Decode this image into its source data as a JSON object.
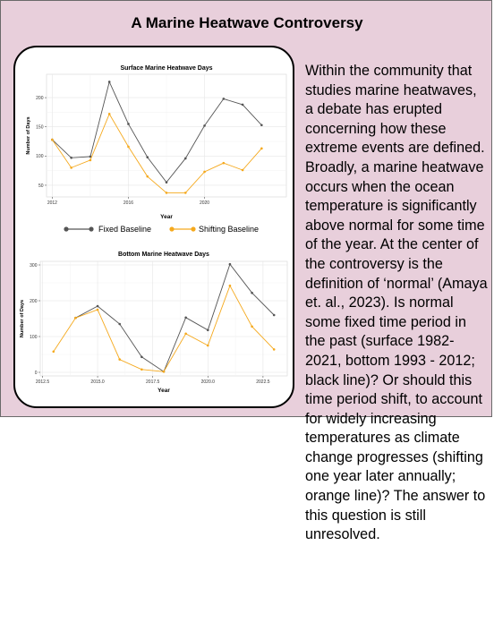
{
  "page": {
    "title": "A Marine Heatwave Controversy",
    "body_text": "Within the community that studies marine heatwaves, a debate has erupted concerning how these extreme events are defined. Broadly, a marine heatwave occurs when the ocean temperature is significantly above normal for some time of the year.  At the center of the controversy is the definition of ‘normal’ (Amaya et. al., 2023). Is normal some fixed time period in the past (surface 1982-2021, bottom 1993 - 2012; black line)?  Or should this time period shift, to account for widely increasing temperatures as climate change progresses (shifting one year later annually; orange line)?  The answer to this question is still unresolved."
  },
  "colors": {
    "panel_background": "#e8cfdb",
    "fixed_series": "#555555",
    "shifting_series": "#f5a91d"
  },
  "legend": {
    "fixed_label": "Fixed Baseline",
    "shifting_label": "Shifting Baseline",
    "placement": "between-charts"
  },
  "chart_data": [
    {
      "type": "line",
      "title": "Surface Marine Heatwave Days",
      "xlabel": "Year",
      "ylabel": "Number of Days",
      "xlim": [
        2011.7,
        2024.3
      ],
      "ylim": [
        30,
        240
      ],
      "xticks": [
        2012,
        2016,
        2020
      ],
      "xtick_labels": [
        "2012",
        "2016",
        "2020"
      ],
      "yticks": [
        50,
        100,
        150,
        200
      ],
      "ytick_labels": [
        "50",
        "100",
        "150",
        "200"
      ],
      "grid": true,
      "series": [
        {
          "name": "Fixed Baseline",
          "x": [
            2012,
            2013,
            2014,
            2015,
            2016,
            2017,
            2018,
            2019,
            2020,
            2021,
            2022,
            2023
          ],
          "y": [
            128,
            97,
            99,
            227,
            155,
            98,
            55,
            96,
            152,
            198,
            188,
            153
          ]
        },
        {
          "name": "Shifting Baseline",
          "x": [
            2012,
            2013,
            2014,
            2015,
            2016,
            2017,
            2018,
            2019,
            2020,
            2021,
            2022,
            2023
          ],
          "y": [
            128,
            80,
            93,
            172,
            116,
            65,
            37,
            37,
            73,
            88,
            76,
            113
          ]
        }
      ]
    },
    {
      "type": "line",
      "title": "Bottom Marine Heatwave Days",
      "xlabel": "Year",
      "ylabel": "Number of Days",
      "xlim": [
        2012.4,
        2023.6
      ],
      "ylim": [
        -10,
        310
      ],
      "xticks": [
        2012.5,
        2015.0,
        2017.5,
        2020.0,
        2022.5
      ],
      "xtick_labels": [
        "2012.5",
        "2015.0",
        "2017.5",
        "2020.0",
        "2022.5"
      ],
      "yticks": [
        0,
        100,
        200,
        300
      ],
      "ytick_labels": [
        "0",
        "100",
        "200",
        "300"
      ],
      "grid": true,
      "series": [
        {
          "name": "Fixed Baseline",
          "x": [
            2014,
            2015,
            2016,
            2017,
            2018,
            2019,
            2020,
            2021,
            2022,
            2023
          ],
          "y": [
            152,
            185,
            135,
            43,
            2,
            153,
            118,
            302,
            222,
            160
          ]
        },
        {
          "name": "Shifting Baseline",
          "x": [
            2013,
            2014,
            2015,
            2016,
            2017,
            2018,
            2019,
            2020,
            2021,
            2022,
            2023
          ],
          "y": [
            58,
            152,
            175,
            36,
            8,
            2,
            108,
            75,
            242,
            128,
            64
          ]
        }
      ]
    }
  ]
}
